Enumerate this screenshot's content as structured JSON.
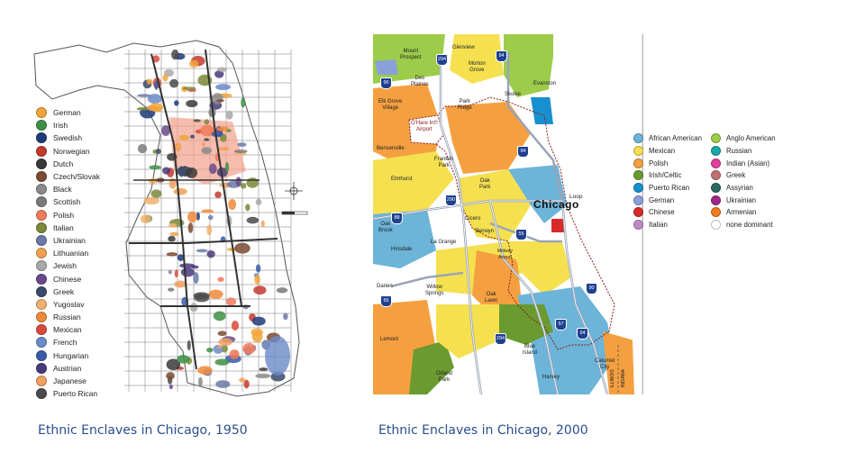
{
  "captions": {
    "map_1950": "Ethnic Enclaves in Chicago, 1950",
    "map_2000": "Ethnic Enclaves in Chicago, 2000"
  },
  "legend_1950": [
    {
      "label": "German",
      "color": "#f2a43a"
    },
    {
      "label": "Irish",
      "color": "#3d8f45"
    },
    {
      "label": "Swedish",
      "color": "#1d3a7a"
    },
    {
      "label": "Norwegian",
      "color": "#c23a2e"
    },
    {
      "label": "Dutch",
      "color": "#3a3a3a"
    },
    {
      "label": "Czech/Slovak",
      "color": "#7a4a32"
    },
    {
      "label": "Black",
      "color": "#8a8a8a"
    },
    {
      "label": "Scottish",
      "color": "#7a7a7a"
    },
    {
      "label": "Polish",
      "color": "#f07a5a"
    },
    {
      "label": "Italian",
      "color": "#7a8a3a"
    },
    {
      "label": "Ukrainian",
      "color": "#6a7aa8"
    },
    {
      "label": "Lithuanian",
      "color": "#f0a050"
    },
    {
      "label": "Jewish",
      "color": "#a8a8a8"
    },
    {
      "label": "Chinese",
      "color": "#6a4a8a"
    },
    {
      "label": "Greek",
      "color": "#3a4a6a"
    },
    {
      "label": "Yugoslav",
      "color": "#f0b070"
    },
    {
      "label": "Russian",
      "color": "#f08a3a"
    },
    {
      "label": "Mexican",
      "color": "#d84a3a"
    },
    {
      "label": "French",
      "color": "#6a8ac8"
    },
    {
      "label": "Hungarian",
      "color": "#3a5aa8"
    },
    {
      "label": "Austrian",
      "color": "#4a3a7a"
    },
    {
      "label": "Japanese",
      "color": "#f0a060"
    },
    {
      "label": "Puerto Rican",
      "color": "#4a4a4a"
    }
  ],
  "legend_2000": [
    {
      "label": "African American",
      "color": "#6cb4d8"
    },
    {
      "label": "Anglo American",
      "color": "#9ccc4a"
    },
    {
      "label": "Mexican",
      "color": "#f5e050"
    },
    {
      "label": "Russian",
      "color": "#18a8a8"
    },
    {
      "label": "Polish",
      "color": "#f5a040"
    },
    {
      "label": "Indian (Asian)",
      "color": "#e0409a"
    },
    {
      "label": "Irish/Celtic",
      "color": "#6a9a30"
    },
    {
      "label": "Greek",
      "color": "#c07070"
    },
    {
      "label": "Puerto Rican",
      "color": "#1890d0"
    },
    {
      "label": "Assyrian",
      "color": "#2a6a60"
    },
    {
      "label": "German",
      "color": "#8aa0d8"
    },
    {
      "label": "Ukrainian",
      "color": "#a02a8a"
    },
    {
      "label": "Chinese",
      "color": "#d82a2a"
    },
    {
      "label": "Armenian",
      "color": "#f07a20"
    },
    {
      "label": "Italian",
      "color": "#c08ac8"
    },
    {
      "label": "none dominant",
      "color": "#ffffff"
    }
  ],
  "map_2000_labels": {
    "city": "Chicago",
    "loop": "Loop",
    "places": [
      "Glenview",
      "Mount\nProspect",
      "Morton\nGrove",
      "Des\nPlaines",
      "Evanston",
      "Skokie",
      "Elk Grove\nVillage",
      "Park\nRidge",
      "O'Hare Int'l\nAirport",
      "Bensenville",
      "Franklin\nPark",
      "Elmhurst",
      "Oak\nPark",
      "Cicero",
      "Berwyn",
      "Oak\nBrook",
      "La Grange",
      "Hinsdale",
      "Midway\nAirport",
      "Darien",
      "Willow\nSprings",
      "Oak\nLawn",
      "Lemont",
      "Blue\nIsland",
      "Calumet\nCity",
      "Orland\nPark",
      "Harvey"
    ],
    "state_line": [
      "ILLINOIS",
      "INDIANA"
    ],
    "highways": [
      "294",
      "90",
      "94",
      "88",
      "290",
      "55",
      "57",
      "294",
      "55",
      "90",
      "94",
      "94"
    ]
  }
}
